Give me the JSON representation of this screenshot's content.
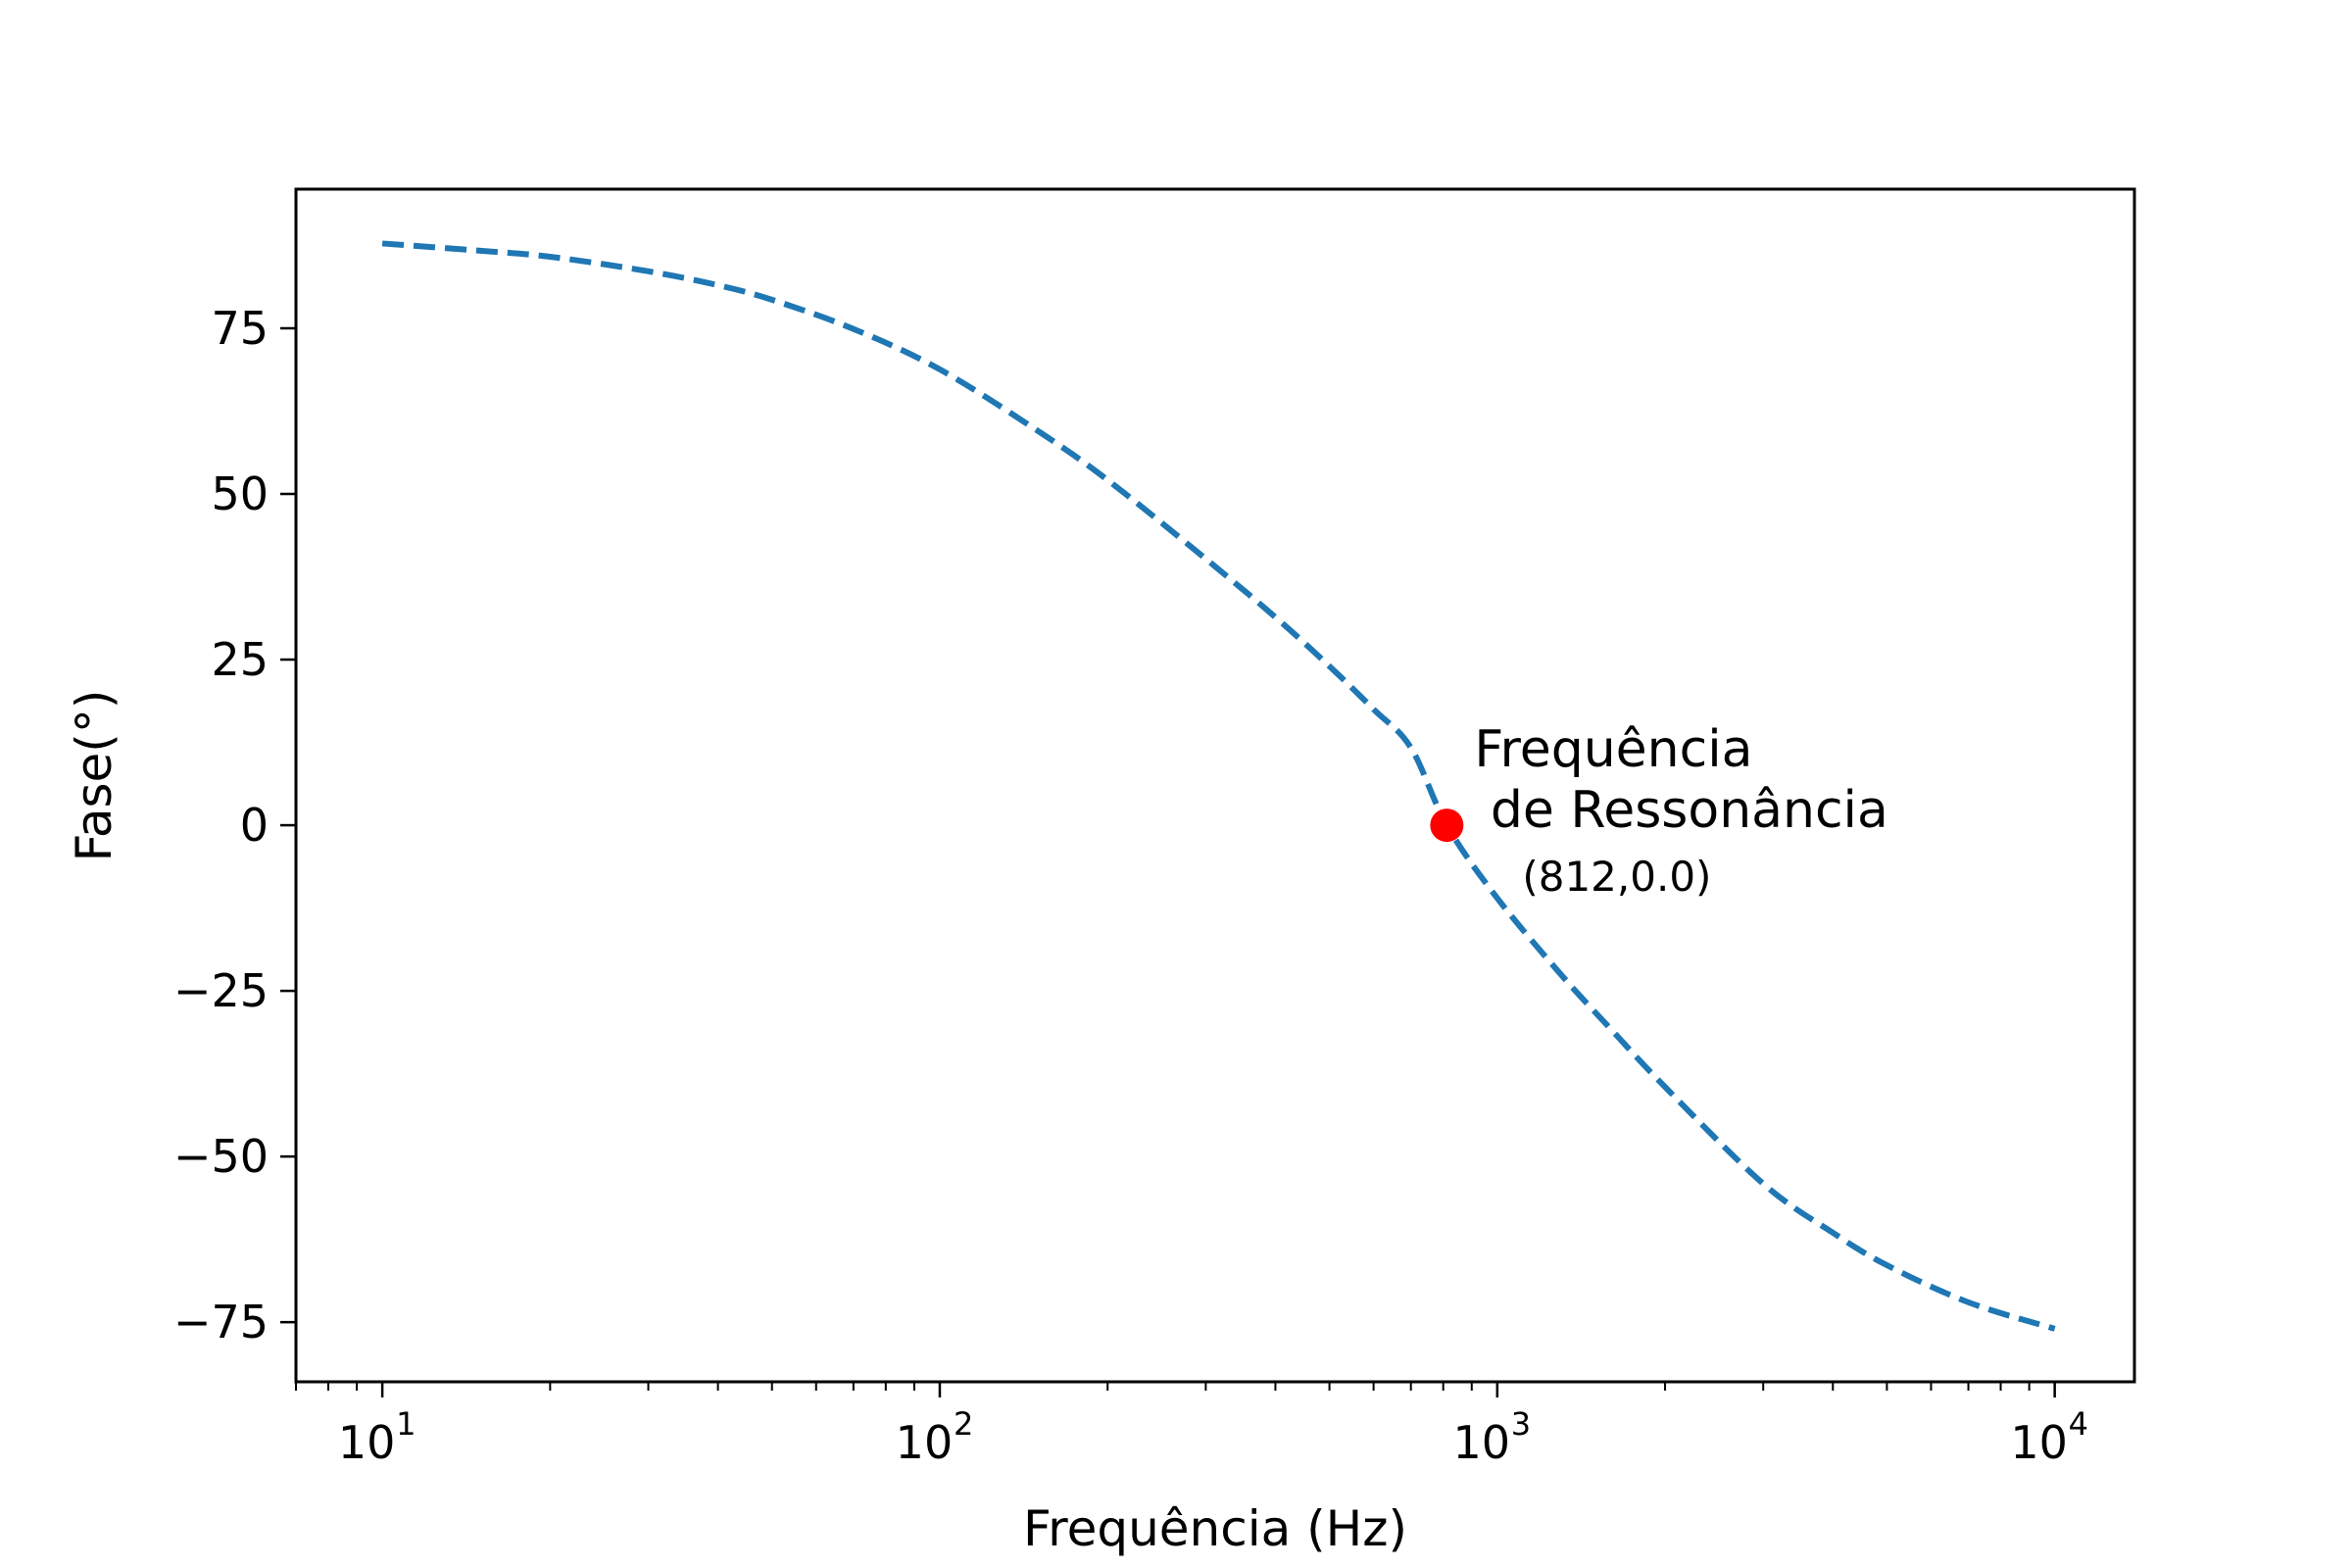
{
  "chart_data": {
    "type": "line",
    "title": "",
    "xlabel": "Frequência (Hz)",
    "ylabel": "Fase(°)",
    "xscale": "log",
    "xlim": [
      7,
      13900
    ],
    "ylim": [
      -84,
      96
    ],
    "x_ticks": [
      {
        "base": "10",
        "exp": "1",
        "value": 10
      },
      {
        "base": "10",
        "exp": "2",
        "value": 100
      },
      {
        "base": "10",
        "exp": "3",
        "value": 1000
      },
      {
        "base": "10",
        "exp": "4",
        "value": 10000
      }
    ],
    "y_ticks": [
      {
        "label": "75",
        "value": 75
      },
      {
        "label": "50",
        "value": 50
      },
      {
        "label": "25",
        "value": 25
      },
      {
        "label": "0",
        "value": 0
      },
      {
        "label": "−25",
        "value": -25
      },
      {
        "label": "−50",
        "value": -50
      },
      {
        "label": "−75",
        "value": -75
      }
    ],
    "grid": false,
    "series": [
      {
        "style": "dashed",
        "color": "#1f77b4",
        "x": [
          10,
          15,
          20,
          30,
          40,
          50,
          70,
          100,
          150,
          200,
          300,
          400,
          500,
          600,
          700,
          812,
          1000,
          1300,
          1600,
          2000,
          3000,
          4000,
          5000,
          7000,
          10000
        ],
        "y": [
          87.8,
          86.7,
          85.8,
          83.6,
          81.5,
          79.3,
          74.9,
          68.8,
          59.5,
          52.1,
          40.2,
          31.4,
          24.0,
          17.5,
          11.7,
          0.0,
          -11.0,
          -22.5,
          -30.8,
          -39.5,
          -54.1,
          -61.5,
          -66.4,
          -72.0,
          -76.0
        ]
      }
    ],
    "highlight": {
      "x": 812,
      "y": 0.0,
      "color": "#ff0000",
      "label_line1": "Frequência",
      "label_line2": " de Ressonância",
      "coord_label": "(812,0.0)"
    }
  }
}
